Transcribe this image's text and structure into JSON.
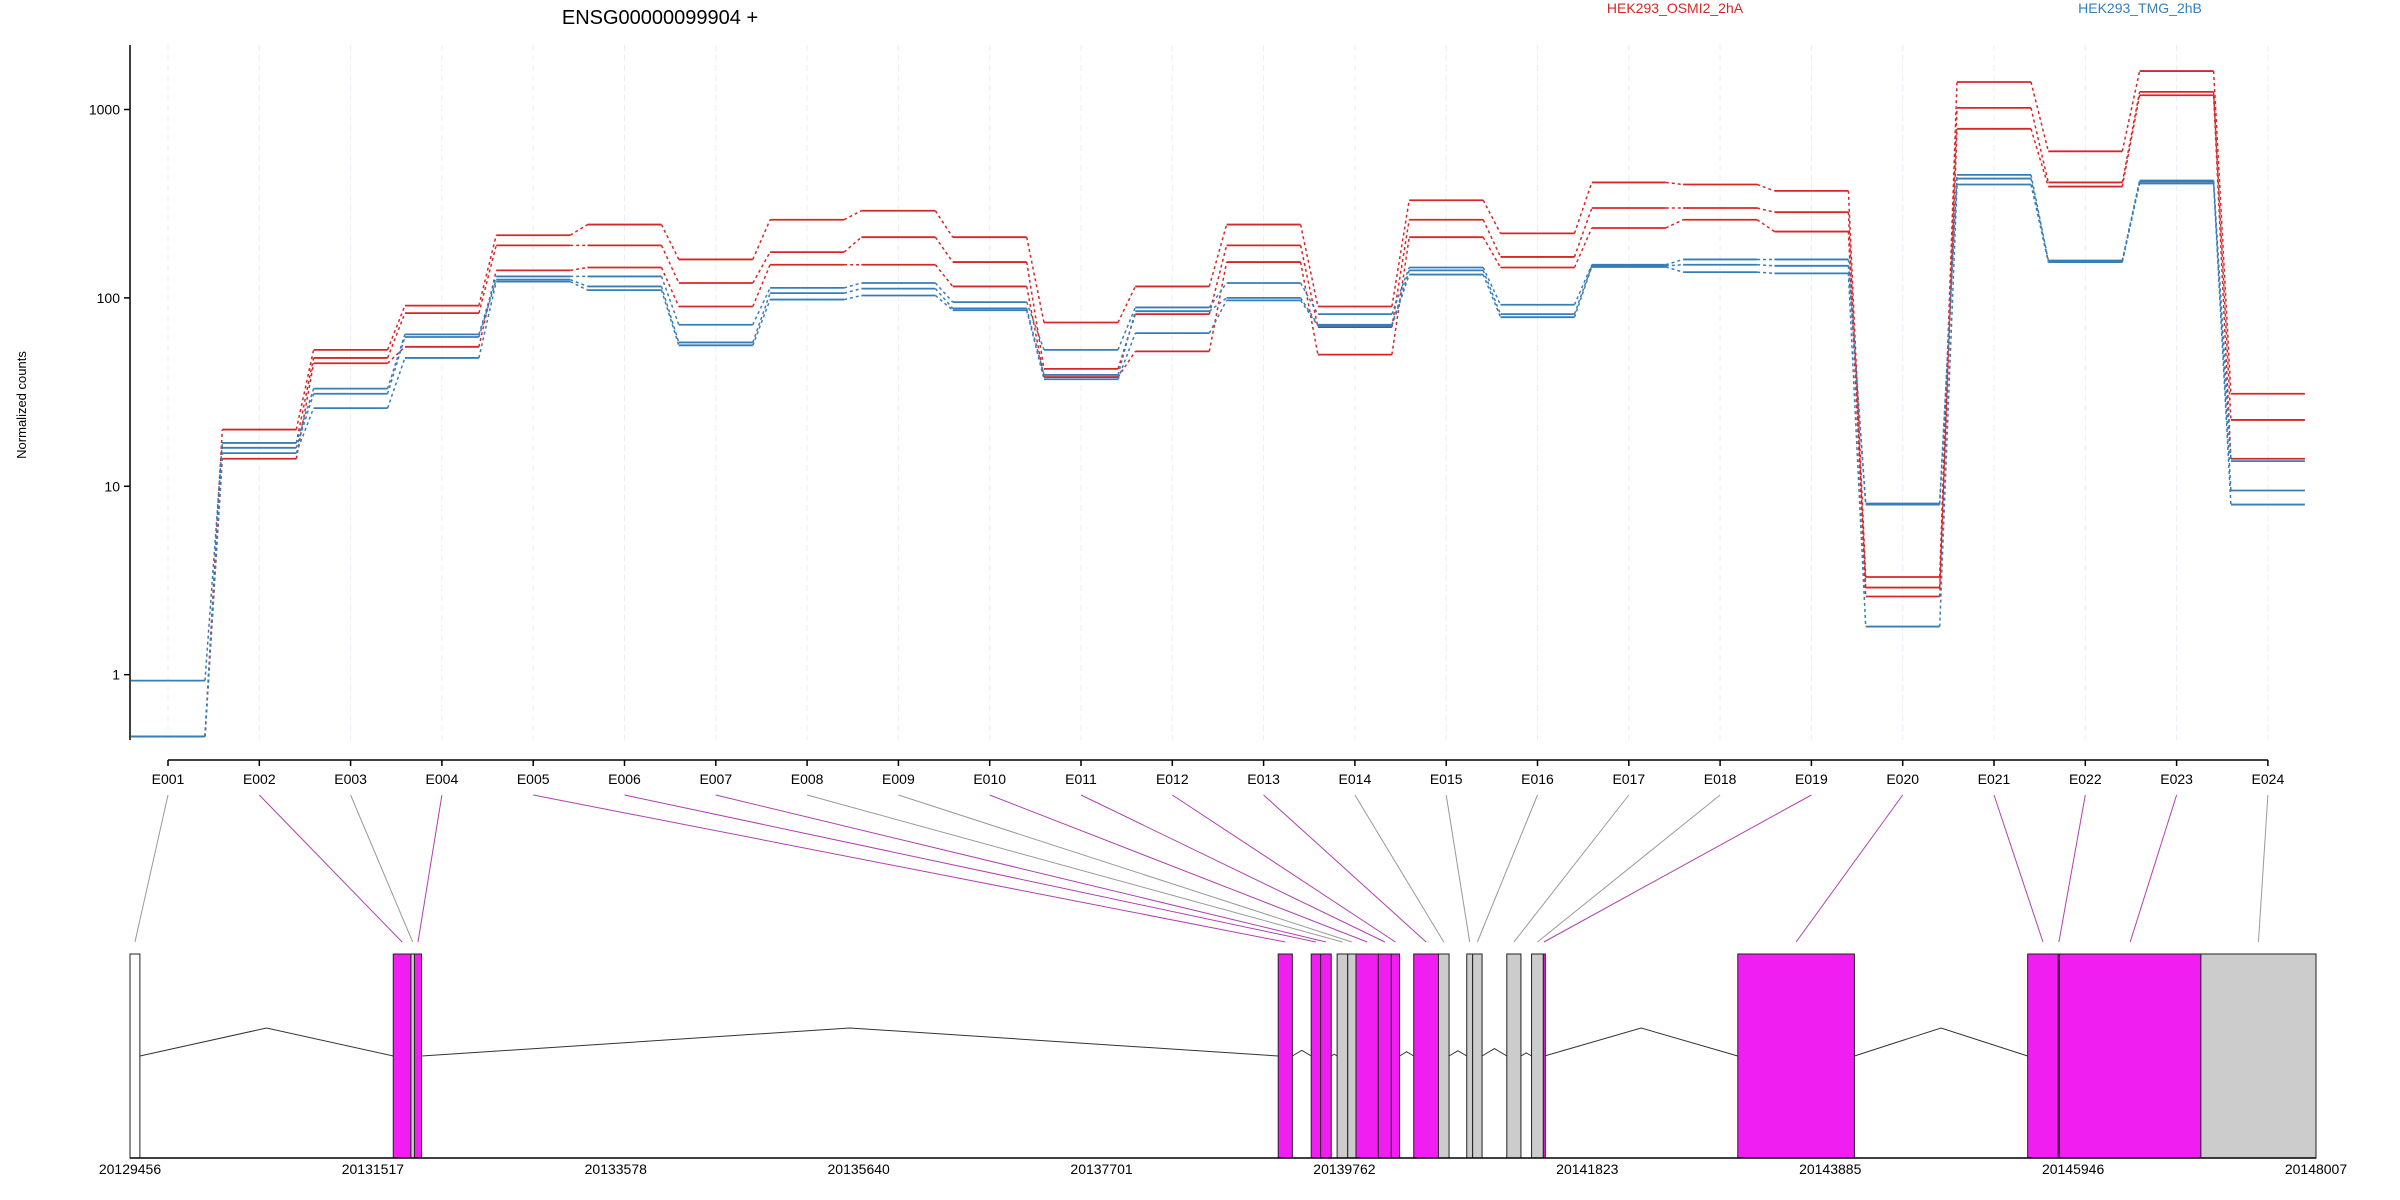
{
  "chart_data": {
    "type": "line",
    "title": "ENSG00000099904 +",
    "ylabel": "Normalized counts",
    "yscale": "log",
    "ylim": [
      0.45,
      2200
    ],
    "yticks": [
      {
        "value": 1,
        "label": "1"
      },
      {
        "value": 10,
        "label": "10"
      },
      {
        "value": 100,
        "label": "100"
      },
      {
        "value": 1000,
        "label": "1000"
      }
    ],
    "legend": [
      {
        "name": "HEK293_OSMI2_2hA",
        "color": "#d62728"
      },
      {
        "name": "HEK293_TMG_2hB",
        "color": "#377eb8"
      }
    ],
    "exons": [
      "E001",
      "E002",
      "E003",
      "E004",
      "E005",
      "E006",
      "E007",
      "E008",
      "E009",
      "E010",
      "E011",
      "E012",
      "E013",
      "E014",
      "E015",
      "E016",
      "E017",
      "E018",
      "E019",
      "E020",
      "E021",
      "E022",
      "E023",
      "E024"
    ],
    "series": [
      {
        "group": "HEK293_OSMI2_2hA",
        "color": "#d62728",
        "values": [
          0.47,
          20,
          53,
          91,
          215,
          245,
          160,
          260,
          290,
          210,
          74,
          115,
          245,
          90,
          330,
          220,
          410,
          400,
          370,
          3.3,
          1400,
          600,
          1600,
          31
        ]
      },
      {
        "group": "HEK293_OSMI2_2hA",
        "color": "#d62728",
        "values": [
          0.47,
          17,
          48,
          83,
          190,
          190,
          120,
          175,
          210,
          155,
          42,
          82,
          190,
          70,
          260,
          165,
          300,
          300,
          285,
          2.9,
          1020,
          410,
          1240,
          22.5
        ]
      },
      {
        "group": "HEK293_OSMI2_2hA",
        "color": "#d62728",
        "values": [
          0.47,
          14,
          45,
          55,
          140,
          145,
          90,
          150,
          150,
          115,
          38,
          52,
          155,
          50,
          210,
          145,
          235,
          260,
          225,
          2.6,
          790,
          390,
          1190,
          14
        ]
      },
      {
        "group": "HEK293_TMG_2hB",
        "color": "#377eb8",
        "values": [
          0.93,
          17,
          33,
          64,
          130,
          130,
          72,
          113,
          120,
          95,
          53,
          89,
          120,
          82,
          145,
          92,
          150,
          160,
          160,
          8.1,
          450,
          158,
          420,
          13.6
        ]
      },
      {
        "group": "HEK293_TMG_2hB",
        "color": "#377eb8",
        "values": [
          0.47,
          16,
          31,
          62,
          125,
          115,
          58,
          106,
          112,
          88,
          39,
          85,
          100,
          72,
          140,
          82,
          148,
          150,
          148,
          8.0,
          430,
          156,
          415,
          9.5
        ]
      },
      {
        "group": "HEK293_TMG_2hB",
        "color": "#377eb8",
        "values": [
          0.47,
          15,
          26,
          48,
          122,
          110,
          56,
          98,
          103,
          86,
          37,
          65,
          97,
          71,
          133,
          79,
          146,
          137,
          135,
          1.8,
          400,
          155,
          405,
          8.0
        ]
      }
    ],
    "genomic_ticks": [
      "20129456",
      "20131517",
      "20133578",
      "20135640",
      "20137701",
      "20139762",
      "20141823",
      "20143885",
      "20145946",
      "20148007"
    ],
    "genomic_range": [
      20129456,
      20148007
    ],
    "exon_segments": [
      {
        "id": "E001",
        "start": 20129456,
        "end": 20129540,
        "tested": false
      },
      {
        "id": "E002",
        "start": 20131690,
        "end": 20131840,
        "tested": true
      },
      {
        "id": "E003",
        "start": 20131840,
        "end": 20131870,
        "tested": false
      },
      {
        "id": "E004",
        "start": 20131870,
        "end": 20131930,
        "tested": true
      },
      {
        "id": "E005",
        "start": 20139200,
        "end": 20139320,
        "tested": true
      },
      {
        "id": "E006",
        "start": 20139480,
        "end": 20139560,
        "tested": true
      },
      {
        "id": "E007",
        "start": 20139560,
        "end": 20139650,
        "tested": true
      },
      {
        "id": "E008",
        "start": 20139700,
        "end": 20139790,
        "tested": false
      },
      {
        "id": "E009",
        "start": 20139790,
        "end": 20139860,
        "tested": false
      },
      {
        "id": "E010",
        "start": 20139860,
        "end": 20140050,
        "tested": true
      },
      {
        "id": "E011",
        "start": 20140050,
        "end": 20140160,
        "tested": true
      },
      {
        "id": "E012",
        "start": 20140160,
        "end": 20140230,
        "tested": true
      },
      {
        "id": "E013",
        "start": 20140350,
        "end": 20140560,
        "tested": true
      },
      {
        "id": "E014",
        "start": 20140560,
        "end": 20140650,
        "tested": false
      },
      {
        "id": "E015",
        "start": 20140800,
        "end": 20140850,
        "tested": false
      },
      {
        "id": "E016",
        "start": 20140850,
        "end": 20140930,
        "tested": false
      },
      {
        "id": "E017",
        "start": 20141140,
        "end": 20141260,
        "tested": false
      },
      {
        "id": "E018",
        "start": 20141350,
        "end": 20141450,
        "tested": false
      },
      {
        "id": "E019",
        "start": 20141450,
        "end": 20141460,
        "tested": true
      },
      {
        "id": "E020",
        "start": 20143100,
        "end": 20144090,
        "tested": true
      },
      {
        "id": "E021",
        "start": 20145560,
        "end": 20145820,
        "tested": true
      },
      {
        "id": "E022",
        "start": 20145820,
        "end": 20145830,
        "tested": true
      },
      {
        "id": "E023",
        "start": 20145830,
        "end": 20147030,
        "tested": true
      },
      {
        "id": "E024",
        "start": 20147030,
        "end": 20148007,
        "tested": false
      }
    ],
    "colors": {
      "tested_exon": "#f01ef0",
      "untested_exon": "#cccccc",
      "connector_tested": "#b040b0",
      "connector_untested": "#999999",
      "gridline": "#ececf8"
    }
  }
}
